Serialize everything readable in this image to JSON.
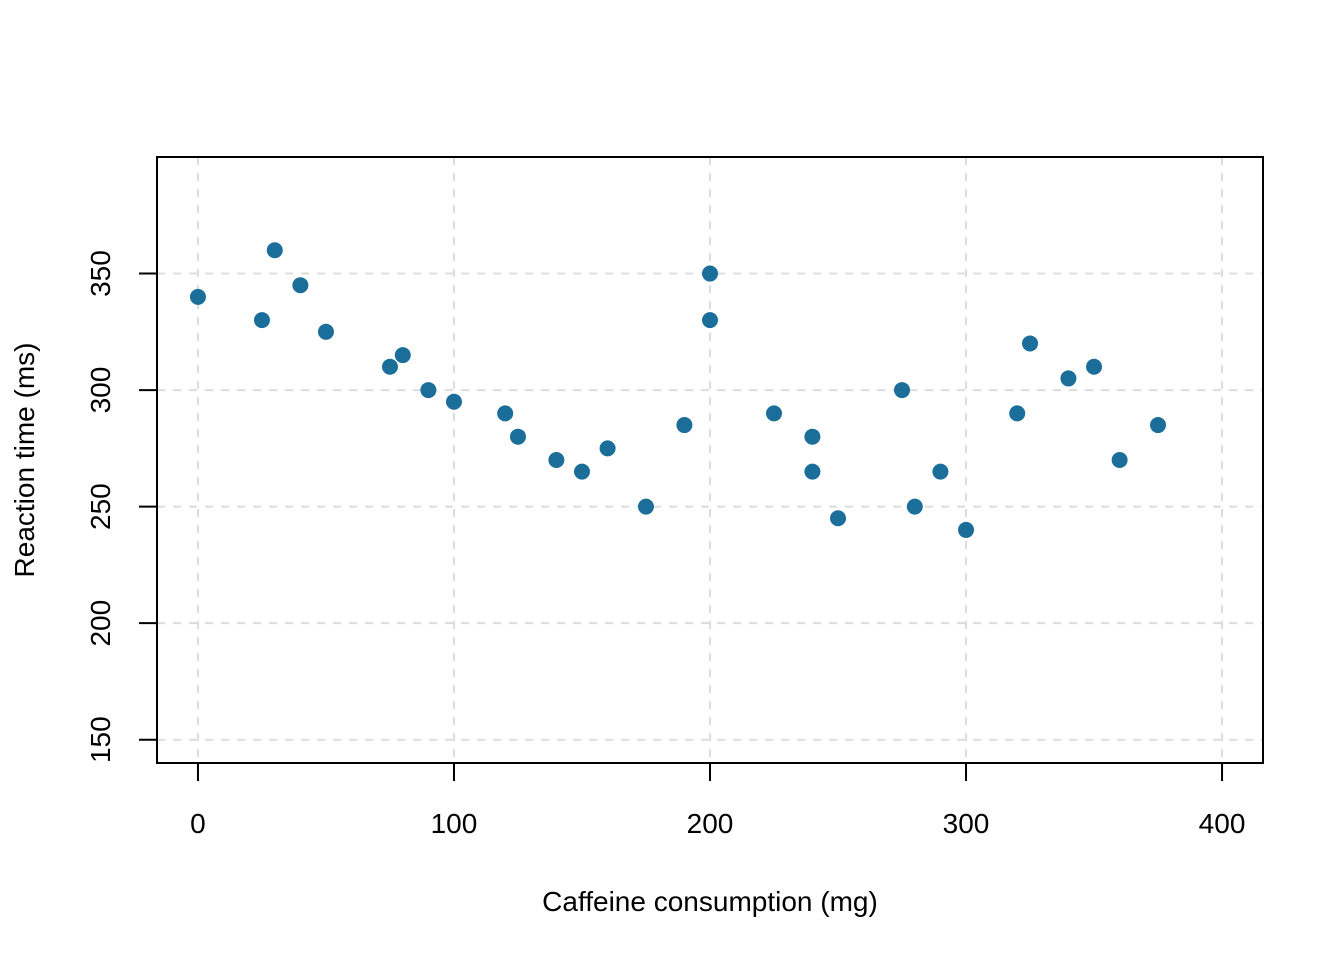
{
  "chart_data": {
    "type": "scatter",
    "title": "",
    "xlabel": "Caffeine consumption (mg)",
    "ylabel": "Reaction time (ms)",
    "xlim": [
      -16,
      416
    ],
    "ylim": [
      140,
      400
    ],
    "x_ticks": [
      0,
      100,
      200,
      300,
      400
    ],
    "x_tick_labels": [
      "0",
      "100",
      "200",
      "300",
      "400"
    ],
    "y_ticks": [
      150,
      200,
      250,
      300,
      350
    ],
    "y_tick_labels": [
      "150",
      "200",
      "250",
      "300",
      "350"
    ],
    "grid": true,
    "legend": "none",
    "marker_color": "#1a6e99",
    "grid_color": "#dcdcdc",
    "series": [
      {
        "points": [
          {
            "x": 0,
            "y": 340
          },
          {
            "x": 25,
            "y": 330
          },
          {
            "x": 30,
            "y": 360
          },
          {
            "x": 40,
            "y": 345
          },
          {
            "x": 50,
            "y": 325
          },
          {
            "x": 75,
            "y": 310
          },
          {
            "x": 80,
            "y": 315
          },
          {
            "x": 90,
            "y": 300
          },
          {
            "x": 100,
            "y": 295
          },
          {
            "x": 120,
            "y": 290
          },
          {
            "x": 125,
            "y": 280
          },
          {
            "x": 140,
            "y": 270
          },
          {
            "x": 150,
            "y": 265
          },
          {
            "x": 160,
            "y": 275
          },
          {
            "x": 175,
            "y": 250
          },
          {
            "x": 190,
            "y": 285
          },
          {
            "x": 200,
            "y": 350
          },
          {
            "x": 200,
            "y": 330
          },
          {
            "x": 225,
            "y": 290
          },
          {
            "x": 240,
            "y": 280
          },
          {
            "x": 240,
            "y": 265
          },
          {
            "x": 250,
            "y": 245
          },
          {
            "x": 275,
            "y": 300
          },
          {
            "x": 280,
            "y": 250
          },
          {
            "x": 290,
            "y": 265
          },
          {
            "x": 300,
            "y": 240
          },
          {
            "x": 320,
            "y": 290
          },
          {
            "x": 325,
            "y": 320
          },
          {
            "x": 340,
            "y": 305
          },
          {
            "x": 350,
            "y": 310
          },
          {
            "x": 360,
            "y": 270
          },
          {
            "x": 375,
            "y": 285
          }
        ]
      }
    ]
  }
}
